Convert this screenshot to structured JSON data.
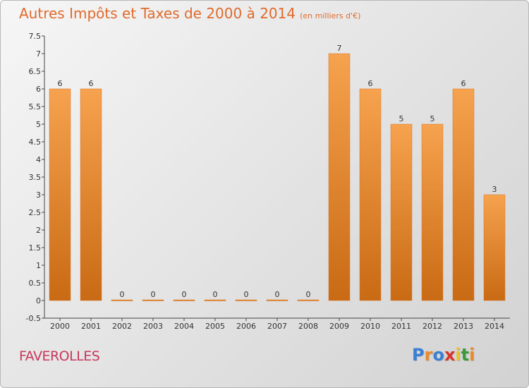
{
  "title": "Autres Impôts et Taxes de 2000 à 2014",
  "subtitle": "(en milliers d'€)",
  "commune": "FAVEROLLES",
  "logo": {
    "letters": [
      "P",
      "r",
      "o",
      "x",
      "i",
      "t",
      "i"
    ],
    "colors": [
      "#3a7fd5",
      "#e8892b",
      "#3a7fd5",
      "#d9342b",
      "#e8c12b",
      "#3a9b3a",
      "#e8892b"
    ]
  },
  "colors": {
    "bar": "#e8892b",
    "bar_light": "#f6a24e",
    "bar_dark": "#c96a14",
    "title": "#e06a2c"
  },
  "chart_data": {
    "type": "bar",
    "categories": [
      "2000",
      "2001",
      "2002",
      "2003",
      "2004",
      "2005",
      "2006",
      "2007",
      "2008",
      "2009",
      "2010",
      "2011",
      "2012",
      "2013",
      "2014"
    ],
    "values": [
      6,
      6,
      0,
      0,
      0,
      0,
      0,
      0,
      0,
      7,
      6,
      5,
      5,
      6,
      3
    ],
    "data_labels": [
      "6",
      "6",
      "0",
      "0",
      "0",
      "0",
      "0",
      "0",
      "0",
      "7",
      "6",
      "5",
      "5",
      "6",
      "3"
    ],
    "yticks": [
      "-0.5",
      "0",
      "0.5",
      "1",
      "1.5",
      "2",
      "2.5",
      "3",
      "3.5",
      "4",
      "4.5",
      "5",
      "5.5",
      "6",
      "6.5",
      "7",
      "7.5"
    ],
    "ylim": [
      -0.5,
      7.5
    ],
    "grid": false,
    "legend": "none"
  }
}
